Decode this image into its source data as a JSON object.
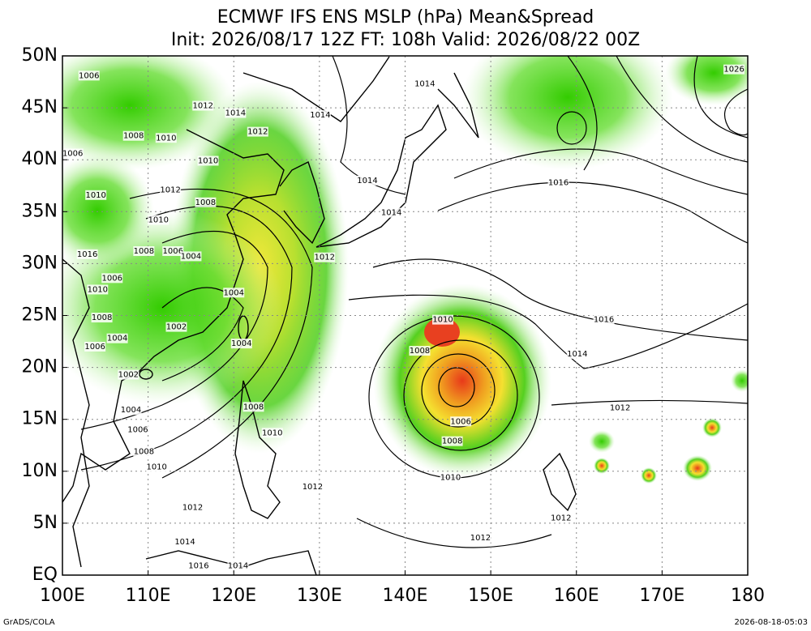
{
  "map": {
    "title": [
      "ECMWF IFS ENS MSLP (hPa) Mean&Spread",
      "Init: 2026/08/17 12Z  FT: 108h  Valid: 2026/08/22 00Z"
    ],
    "xlim": [
      100,
      180
    ],
    "ylim": [
      0,
      50
    ],
    "xticks": [
      {
        "value": 100,
        "label": "100E"
      },
      {
        "value": 110,
        "label": "110E"
      },
      {
        "value": 120,
        "label": "120E"
      },
      {
        "value": 130,
        "label": "130E"
      },
      {
        "value": 140,
        "label": "140E"
      },
      {
        "value": 150,
        "label": "150E"
      },
      {
        "value": 160,
        "label": "160E"
      },
      {
        "value": 170,
        "label": "170E"
      },
      180
    ],
    "yticks": [
      {
        "value": 0,
        "label": "EQ"
      },
      {
        "value": 5,
        "label": "5N"
      },
      {
        "value": 10,
        "label": "10N"
      },
      {
        "value": 15,
        "label": "15N"
      },
      {
        "value": 20,
        "label": "20N"
      },
      {
        "value": 25,
        "label": "25N"
      },
      {
        "value": 30,
        "label": "30N"
      },
      {
        "value": 35,
        "label": "35N"
      },
      {
        "value": 40,
        "label": "40N"
      },
      {
        "value": 45,
        "label": "45N"
      },
      {
        "value": 50,
        "label": "50N"
      }
    ],
    "grid": true,
    "contour_labels": [
      {
        "label": "1006",
        "lon": 103.1,
        "lat": 48.1
      },
      {
        "label": "1012",
        "lon": 116.4,
        "lat": 45.2
      },
      {
        "label": "1014",
        "lon": 120.2,
        "lat": 44.5
      },
      {
        "label": "1012",
        "lon": 122.8,
        "lat": 42.7
      },
      {
        "label": "1008",
        "lon": 108.3,
        "lat": 42.3
      },
      {
        "label": "1010",
        "lon": 112.1,
        "lat": 42.1
      },
      {
        "label": "1006",
        "lon": 101.2,
        "lat": 40.6
      },
      {
        "label": "1010",
        "lon": 117.0,
        "lat": 39.9
      },
      {
        "label": "1014",
        "lon": 130.1,
        "lat": 44.3
      },
      {
        "label": "1014",
        "lon": 142.3,
        "lat": 47.3
      },
      {
        "label": "1026",
        "lon": 178.4,
        "lat": 48.7
      },
      {
        "label": "1016",
        "lon": 157.9,
        "lat": 37.8
      },
      {
        "label": "1014",
        "lon": 135.6,
        "lat": 38.0
      },
      {
        "label": "1014",
        "lon": 138.4,
        "lat": 34.9
      },
      {
        "label": "1012",
        "lon": 130.6,
        "lat": 30.6
      },
      {
        "label": "1010",
        "lon": 103.9,
        "lat": 36.6
      },
      {
        "label": "1012",
        "lon": 112.6,
        "lat": 37.1
      },
      {
        "label": "1010",
        "lon": 111.2,
        "lat": 34.2
      },
      {
        "label": "1008",
        "lon": 116.7,
        "lat": 35.9
      },
      {
        "label": "1008",
        "lon": 109.5,
        "lat": 31.2
      },
      {
        "label": "1006",
        "lon": 112.9,
        "lat": 31.2
      },
      {
        "label": "1004",
        "lon": 115.0,
        "lat": 30.7
      },
      {
        "label": "1016",
        "lon": 102.9,
        "lat": 30.9
      },
      {
        "label": "1006",
        "lon": 105.8,
        "lat": 28.6
      },
      {
        "label": "1010",
        "lon": 104.1,
        "lat": 27.5
      },
      {
        "label": "1004",
        "lon": 120.0,
        "lat": 27.2
      },
      {
        "label": "1008",
        "lon": 104.6,
        "lat": 24.8
      },
      {
        "label": "1002",
        "lon": 113.3,
        "lat": 23.9
      },
      {
        "label": "1004",
        "lon": 106.4,
        "lat": 22.8
      },
      {
        "label": "1006",
        "lon": 103.8,
        "lat": 22.0
      },
      {
        "label": "1004",
        "lon": 120.9,
        "lat": 22.3
      },
      {
        "label": "1002",
        "lon": 107.7,
        "lat": 19.3
      },
      {
        "label": "1010",
        "lon": 144.4,
        "lat": 24.6
      },
      {
        "label": "1016",
        "lon": 163.2,
        "lat": 24.6
      },
      {
        "label": "1014",
        "lon": 160.1,
        "lat": 21.3
      },
      {
        "label": "1008",
        "lon": 141.7,
        "lat": 21.6
      },
      {
        "label": "1012",
        "lon": 165.1,
        "lat": 16.1
      },
      {
        "label": "1004",
        "lon": 108.0,
        "lat": 15.9
      },
      {
        "label": "1008",
        "lon": 122.3,
        "lat": 16.2
      },
      {
        "label": "1006",
        "lon": 146.5,
        "lat": 14.8
      },
      {
        "label": "1006",
        "lon": 108.8,
        "lat": 14.0
      },
      {
        "label": "1008",
        "lon": 145.5,
        "lat": 12.9
      },
      {
        "label": "1010",
        "lon": 124.5,
        "lat": 13.7
      },
      {
        "label": "1008",
        "lon": 109.5,
        "lat": 11.9
      },
      {
        "label": "1010",
        "lon": 111.0,
        "lat": 10.4
      },
      {
        "label": "1010",
        "lon": 145.3,
        "lat": 9.4
      },
      {
        "label": "1012",
        "lon": 129.2,
        "lat": 8.5
      },
      {
        "label": "1012",
        "lon": 115.2,
        "lat": 6.5
      },
      {
        "label": "1012",
        "lon": 158.2,
        "lat": 5.5
      },
      {
        "label": "1014",
        "lon": 114.3,
        "lat": 3.2
      },
      {
        "label": "1012",
        "lon": 148.8,
        "lat": 3.6
      },
      {
        "label": "1016",
        "lon": 115.9,
        "lat": 0.9
      },
      {
        "label": "1014",
        "lon": 120.5,
        "lat": 0.9
      }
    ],
    "footer_left": "GrADS/COLA",
    "footer_right": "2026-08-18-05:03"
  }
}
